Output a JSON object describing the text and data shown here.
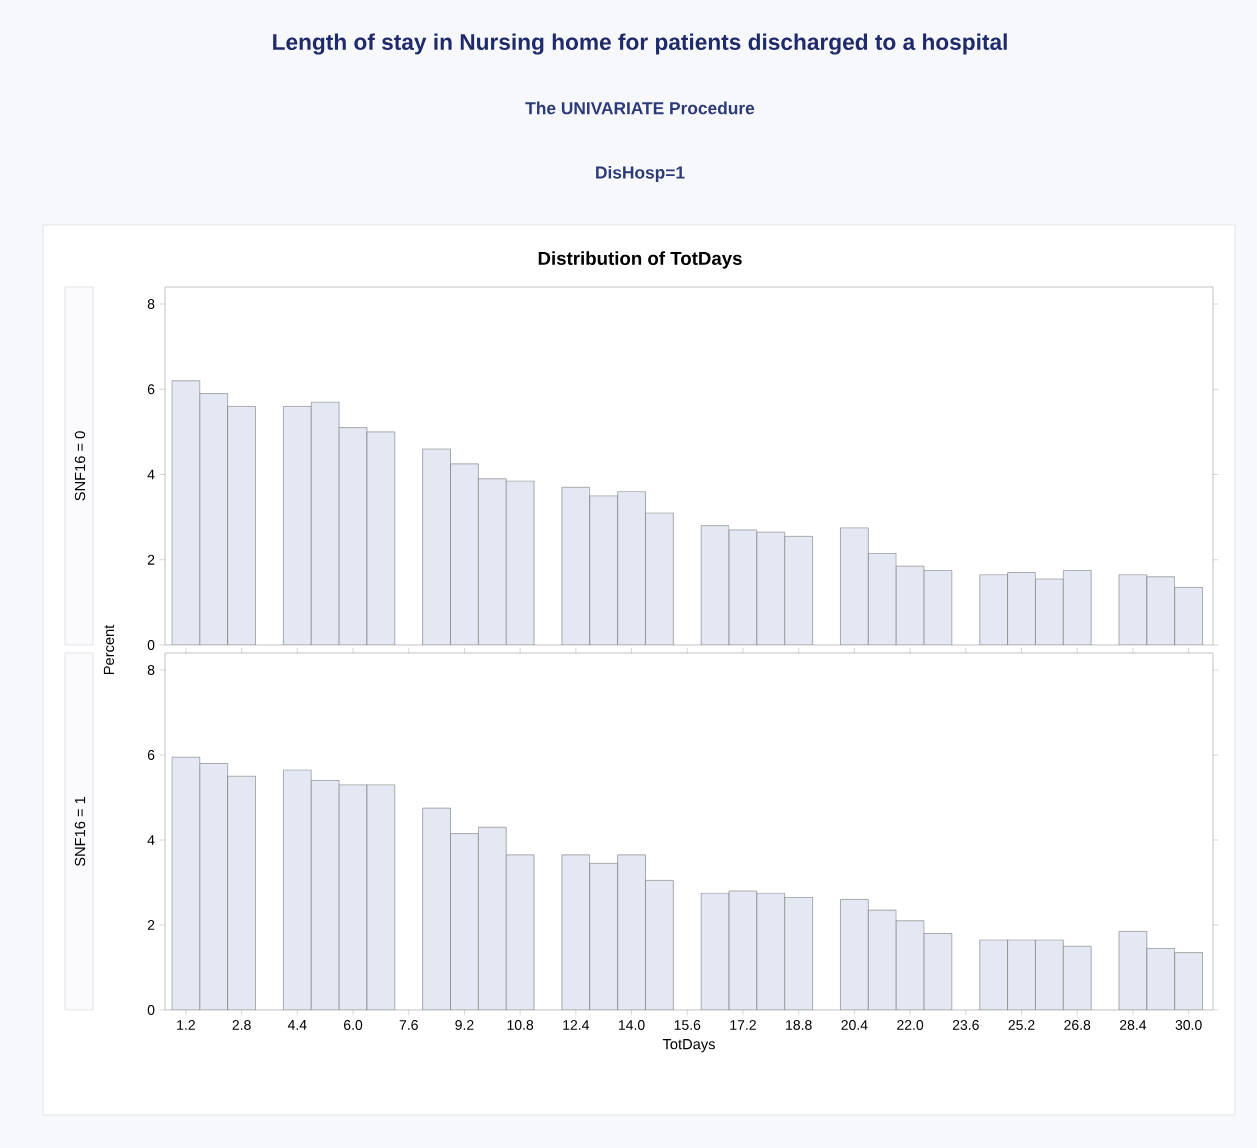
{
  "chart_data": [
    {
      "type": "histogram",
      "title": "Length of stay in Nursing home for patients discharged to a hospital",
      "subtitle": "The UNIVARIATE Procedure",
      "ylabel": "Percent",
      "annotations": [
        "DisHosp=1",
        "Distribution of TotDays",
        "SNF16 = 0"
      ],
      "bins": [
        0.8,
        1.6,
        2.4,
        3.2,
        4.0,
        4.8,
        5.6,
        6.4,
        7.2,
        8.0,
        8.8,
        9.6,
        10.4,
        11.2,
        12.0,
        12.8,
        13.6,
        14.4,
        15.2,
        16.0,
        16.8,
        17.6,
        18.4,
        19.2,
        20.0,
        20.8,
        21.6,
        22.4,
        23.2,
        24.0,
        24.8,
        25.6,
        26.4,
        27.2,
        28.0,
        28.8,
        29.6,
        30.4
      ],
      "values": [
        6.2,
        5.9,
        5.6,
        null,
        5.6,
        5.7,
        5.1,
        5.0,
        null,
        4.6,
        4.25,
        3.9,
        3.85,
        null,
        3.7,
        3.5,
        3.6,
        3.1,
        null,
        2.8,
        2.7,
        2.65,
        2.55,
        null,
        2.75,
        2.15,
        1.85,
        1.75,
        null,
        1.65,
        1.7,
        1.55,
        1.75,
        null,
        1.65,
        1.6,
        1.35
      ],
      "color": "#e4e8f2",
      "xlim": [
        0.6,
        30.7
      ],
      "ylim": [
        0,
        8.4
      ],
      "yticks": [
        0,
        2,
        4,
        6,
        8
      ],
      "tick_labels": "y",
      "grid": false
    },
    {
      "type": "histogram",
      "xlabel": "TotDays",
      "annotations": [
        "SNF16 = 1"
      ],
      "bins": [
        0.8,
        1.6,
        2.4,
        3.2,
        4.0,
        4.8,
        5.6,
        6.4,
        7.2,
        8.0,
        8.8,
        9.6,
        10.4,
        11.2,
        12.0,
        12.8,
        13.6,
        14.4,
        15.2,
        16.0,
        16.8,
        17.6,
        18.4,
        19.2,
        20.0,
        20.8,
        21.6,
        22.4,
        23.2,
        24.0,
        24.8,
        25.6,
        26.4,
        27.2,
        28.0,
        28.8,
        29.6,
        30.4
      ],
      "values": [
        5.95,
        5.8,
        5.5,
        null,
        5.65,
        5.4,
        5.3,
        5.3,
        null,
        4.75,
        4.15,
        4.3,
        3.65,
        null,
        3.65,
        3.45,
        3.65,
        3.05,
        null,
        2.75,
        2.8,
        2.75,
        2.65,
        null,
        2.6,
        2.35,
        2.1,
        1.8,
        null,
        1.65,
        1.65,
        1.65,
        1.5,
        null,
        1.85,
        1.45,
        1.35
      ],
      "color": "#e4e8f2",
      "xlim": [
        0.6,
        30.7
      ],
      "xticks": [
        1.2,
        2.8,
        4.4,
        {
          "value": 6,
          "label": "6.0"
        },
        7.6,
        9.2,
        10.8,
        12.4,
        {
          "value": 14,
          "label": "14.0"
        },
        15.6,
        17.2,
        18.8,
        20.4,
        {
          "value": 22,
          "label": "22.0"
        },
        23.6,
        25.2,
        26.8,
        28.4,
        {
          "value": 30,
          "label": "30.0"
        }
      ],
      "ylim": [
        0,
        8.4
      ],
      "yticks": [
        0,
        2,
        4,
        6,
        8
      ],
      "grid": false
    }
  ]
}
